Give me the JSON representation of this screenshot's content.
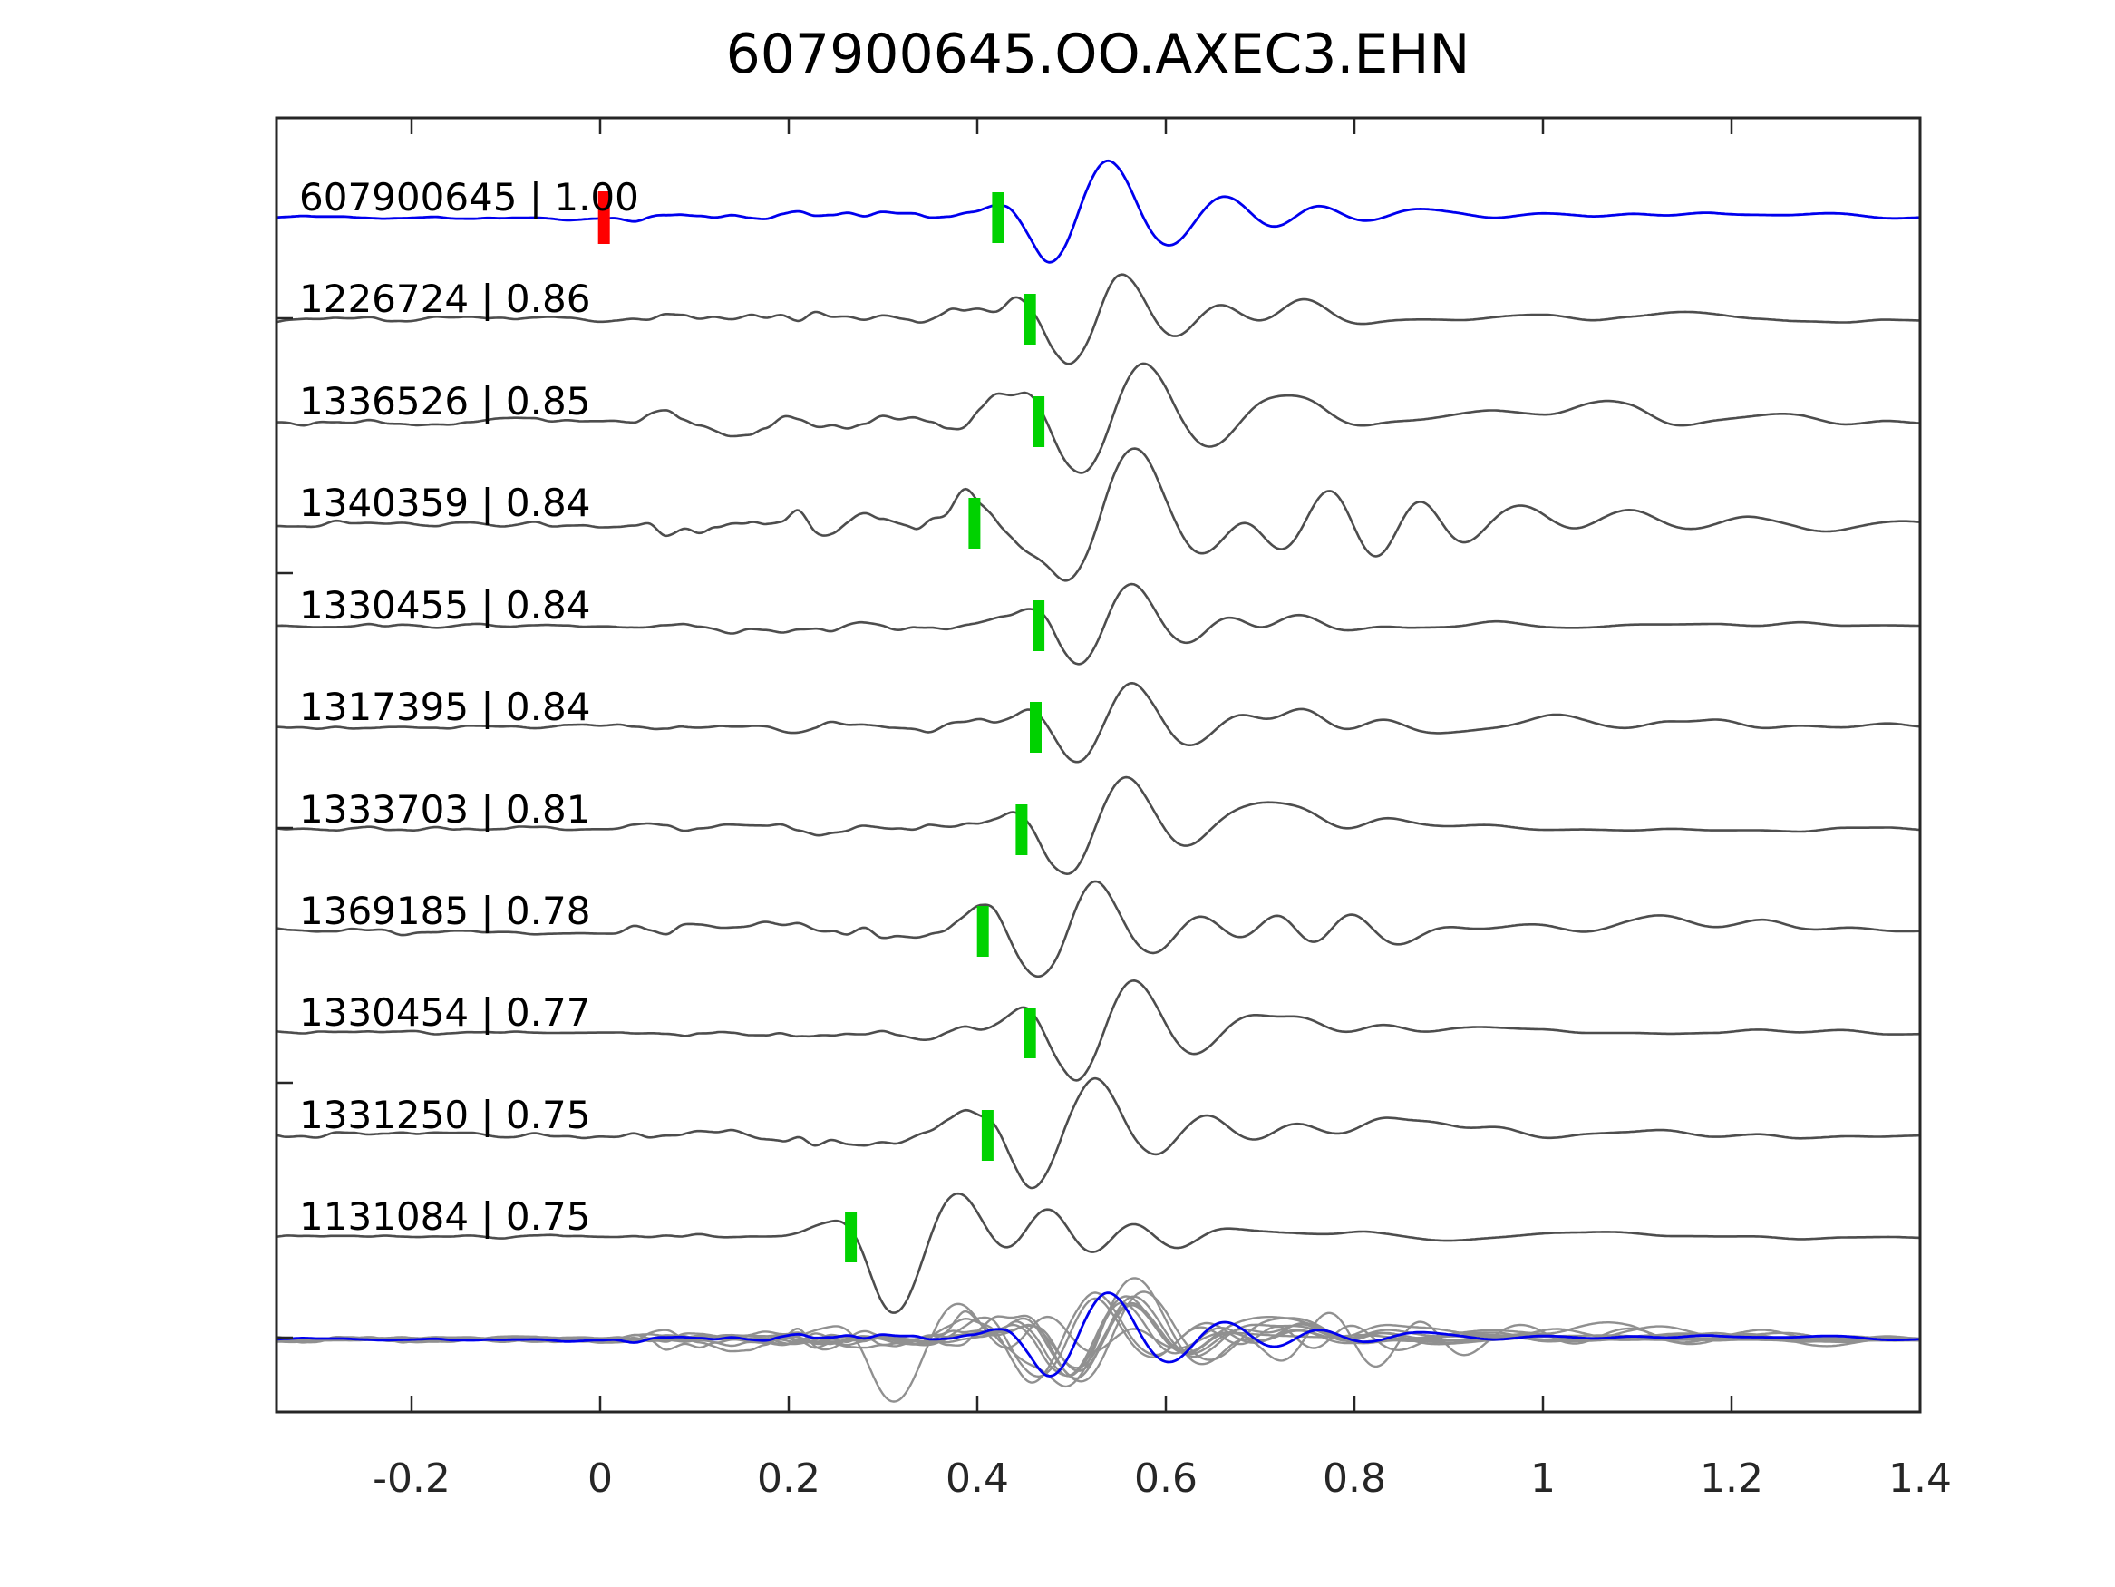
{
  "title": "607900645.OO.AXEC3.EHN",
  "colors": {
    "template_trace": "#0000ee",
    "trace": "#4d4d4d",
    "overlay_trace": "#909090",
    "pick_marker": "#00d200",
    "template_marker": "#ff0000",
    "axis": "#262626",
    "label_text": "#000000"
  },
  "axis": {
    "xticks": [
      -0.2,
      0,
      0.2,
      0.4,
      0.6,
      0.8,
      1.0,
      1.2,
      1.4
    ],
    "xtick_labels": [
      "-0.2",
      "0",
      "0.2",
      "0.4",
      "0.6",
      "0.8",
      "1",
      "1.2",
      "1.4"
    ],
    "xlim": [
      -0.343,
      1.4
    ]
  },
  "chart_data": {
    "type": "line",
    "title": "607900645.OO.AXEC3.EHN",
    "xlabel": "",
    "ylabel": "",
    "xlim": [
      -0.343,
      1.4
    ],
    "xticks": [
      -0.2,
      0,
      0.2,
      0.4,
      0.6,
      0.8,
      1.0,
      1.2,
      1.4
    ],
    "grid": false,
    "legend": "none",
    "description": "Template-matching waveform correlation plot: template trace (blue) on top, 10 detected traces below sorted by correlation, green pick markers on each trace, red marker at time 0 on template, and an overlay of all traces at the bottom.",
    "traces": [
      {
        "id": "607900645",
        "correlation": "1.00",
        "label": "607900645 | 1.00",
        "is_template": true,
        "pick_time": 0.422,
        "template_marker_time": 0.004,
        "noise": {
          "seed": 1,
          "pre": 2.5,
          "packet": 7,
          "tail": 4
        },
        "bumps": [
          [
            0.422,
            20,
            0.02
          ],
          [
            0.462,
            -8,
            0.02
          ],
          [
            0.488,
            -54,
            0.026
          ],
          [
            0.535,
            75,
            0.028
          ],
          [
            0.603,
            -38,
            0.028
          ],
          [
            0.66,
            30,
            0.028
          ],
          [
            0.715,
            -18,
            0.028
          ],
          [
            0.76,
            22,
            0.026
          ],
          [
            0.812,
            -10,
            0.028
          ],
          [
            0.86,
            10,
            0.03
          ],
          [
            1.0,
            6,
            0.035
          ],
          [
            1.15,
            5,
            0.035
          ],
          [
            1.3,
            4,
            0.035
          ]
        ]
      },
      {
        "id": "1226724",
        "correlation": "0.86",
        "label": "1226724 | 0.86",
        "is_template": false,
        "pick_time": 0.456,
        "template_marker_time": null,
        "noise": {
          "seed": 2,
          "pre": 4,
          "packet": 11,
          "tail": 4
        },
        "bumps": [
          [
            0.4,
            10,
            0.025
          ],
          [
            0.456,
            24,
            0.02
          ],
          [
            0.503,
            -60,
            0.026
          ],
          [
            0.55,
            62,
            0.027
          ],
          [
            0.61,
            -30,
            0.028
          ],
          [
            0.652,
            24,
            0.026
          ],
          [
            0.7,
            -12,
            0.026
          ],
          [
            0.742,
            25,
            0.024
          ],
          [
            0.8,
            -8,
            0.026
          ],
          [
            1.0,
            8,
            0.03
          ],
          [
            1.15,
            5,
            0.03
          ]
        ]
      },
      {
        "id": "1336526",
        "correlation": "0.85",
        "label": "1336526 | 0.85",
        "is_template": false,
        "pick_time": 0.465,
        "template_marker_time": null,
        "noise": {
          "seed": 3,
          "pre": 4,
          "packet": 15,
          "tail": 6
        },
        "bumps": [
          [
            0.42,
            12,
            0.022
          ],
          [
            0.465,
            26,
            0.02
          ],
          [
            0.515,
            -65,
            0.026
          ],
          [
            0.575,
            70,
            0.028
          ],
          [
            0.645,
            -32,
            0.028
          ],
          [
            0.7,
            18,
            0.026
          ],
          [
            0.74,
            25,
            0.026
          ],
          [
            0.8,
            -10,
            0.028
          ],
          [
            0.95,
            12,
            0.035
          ],
          [
            1.07,
            18,
            0.035
          ],
          [
            1.15,
            -6,
            0.03
          ],
          [
            1.25,
            8,
            0.032
          ]
        ]
      },
      {
        "id": "1340359",
        "correlation": "0.84",
        "label": "1340359 | 0.84",
        "is_template": false,
        "pick_time": 0.397,
        "template_marker_time": null,
        "noise": {
          "seed": 4,
          "pre": 4,
          "packet": 17,
          "tail": 7
        },
        "bumps": [
          [
            0.397,
            28,
            0.02
          ],
          [
            0.445,
            -14,
            0.022
          ],
          [
            0.5,
            -72,
            0.027
          ],
          [
            0.565,
            86,
            0.03
          ],
          [
            0.638,
            -45,
            0.028
          ],
          [
            0.68,
            20,
            0.022
          ],
          [
            0.725,
            -38,
            0.024
          ],
          [
            0.775,
            48,
            0.024
          ],
          [
            0.822,
            -46,
            0.024
          ],
          [
            0.868,
            42,
            0.024
          ],
          [
            0.912,
            -28,
            0.024
          ],
          [
            0.97,
            22,
            0.028
          ],
          [
            1.03,
            -10,
            0.026
          ],
          [
            1.09,
            14,
            0.028
          ],
          [
            1.16,
            -8,
            0.028
          ],
          [
            1.22,
            12,
            0.028
          ],
          [
            1.3,
            -6,
            0.028
          ],
          [
            1.37,
            8,
            0.028
          ]
        ]
      },
      {
        "id": "1330455",
        "correlation": "0.84",
        "label": "1330455 | 0.84",
        "is_template": false,
        "pick_time": 0.465,
        "template_marker_time": null,
        "noise": {
          "seed": 5,
          "pre": 3,
          "packet": 7,
          "tail": 4
        },
        "bumps": [
          [
            0.42,
            10,
            0.022
          ],
          [
            0.465,
            24,
            0.02
          ],
          [
            0.513,
            -55,
            0.026
          ],
          [
            0.56,
            60,
            0.027
          ],
          [
            0.62,
            -28,
            0.028
          ],
          [
            0.662,
            20,
            0.024
          ],
          [
            0.7,
            -8,
            0.02
          ],
          [
            0.74,
            16,
            0.024
          ],
          [
            0.8,
            -6,
            0.026
          ],
          [
            0.95,
            6,
            0.03
          ]
        ]
      },
      {
        "id": "1317395",
        "correlation": "0.84",
        "label": "1317395 | 0.84",
        "is_template": false,
        "pick_time": 0.462,
        "template_marker_time": null,
        "noise": {
          "seed": 6,
          "pre": 3,
          "packet": 7,
          "tail": 4
        },
        "bumps": [
          [
            0.41,
            8,
            0.022
          ],
          [
            0.462,
            22,
            0.02
          ],
          [
            0.51,
            -52,
            0.026
          ],
          [
            0.56,
            58,
            0.027
          ],
          [
            0.625,
            -26,
            0.028
          ],
          [
            0.675,
            18,
            0.026
          ],
          [
            0.71,
            -6,
            0.02
          ],
          [
            0.745,
            22,
            0.024
          ],
          [
            0.79,
            -8,
            0.024
          ],
          [
            0.83,
            12,
            0.024
          ],
          [
            0.9,
            -5,
            0.026
          ],
          [
            1.02,
            14,
            0.03
          ],
          [
            1.13,
            8,
            0.025
          ],
          [
            1.19,
            7,
            0.025
          ]
        ]
      },
      {
        "id": "1333703",
        "correlation": "0.81",
        "label": "1333703 | 0.81",
        "is_template": false,
        "pick_time": 0.447,
        "template_marker_time": null,
        "noise": {
          "seed": 7,
          "pre": 3,
          "packet": 8,
          "tail": 4
        },
        "bumps": [
          [
            0.4,
            10,
            0.022
          ],
          [
            0.447,
            24,
            0.02
          ],
          [
            0.498,
            -58,
            0.026
          ],
          [
            0.555,
            64,
            0.028
          ],
          [
            0.62,
            -26,
            0.028
          ],
          [
            0.668,
            18,
            0.026
          ],
          [
            0.705,
            16,
            0.022
          ],
          [
            0.745,
            17,
            0.024
          ],
          [
            0.79,
            -8,
            0.024
          ],
          [
            0.83,
            12,
            0.024
          ],
          [
            0.92,
            5,
            0.03
          ]
        ]
      },
      {
        "id": "1369185",
        "correlation": "0.78",
        "label": "1369185 | 0.78",
        "is_template": false,
        "pick_time": 0.406,
        "template_marker_time": null,
        "noise": {
          "seed": 8,
          "pre": 4,
          "packet": 13,
          "tail": 5
        },
        "bumps": [
          [
            0.406,
            26,
            0.022
          ],
          [
            0.452,
            -12,
            0.022
          ],
          [
            0.474,
            -48,
            0.024
          ],
          [
            0.525,
            62,
            0.027
          ],
          [
            0.585,
            -35,
            0.028
          ],
          [
            0.63,
            25,
            0.026
          ],
          [
            0.685,
            -12,
            0.026
          ],
          [
            0.72,
            28,
            0.024
          ],
          [
            0.755,
            -28,
            0.022
          ],
          [
            0.795,
            28,
            0.024
          ],
          [
            0.838,
            -16,
            0.024
          ],
          [
            0.89,
            8,
            0.026
          ],
          [
            0.98,
            6,
            0.03
          ],
          [
            1.12,
            14,
            0.032
          ],
          [
            1.24,
            12,
            0.032
          ],
          [
            1.33,
            6,
            0.03
          ]
        ]
      },
      {
        "id": "1330454",
        "correlation": "0.77",
        "label": "1330454 | 0.77",
        "is_template": false,
        "pick_time": 0.456,
        "template_marker_time": null,
        "noise": {
          "seed": 9,
          "pre": 3,
          "packet": 8,
          "tail": 4
        },
        "bumps": [
          [
            0.41,
            10,
            0.022
          ],
          [
            0.456,
            26,
            0.02
          ],
          [
            0.508,
            -60,
            0.026
          ],
          [
            0.563,
            66,
            0.028
          ],
          [
            0.628,
            -30,
            0.028
          ],
          [
            0.683,
            18,
            0.026
          ],
          [
            0.745,
            16,
            0.026
          ],
          [
            0.79,
            -6,
            0.024
          ],
          [
            0.83,
            10,
            0.026
          ],
          [
            0.93,
            4,
            0.03
          ]
        ]
      },
      {
        "id": "1331250",
        "correlation": "0.75",
        "label": "1331250 | 0.75",
        "is_template": false,
        "pick_time": 0.411,
        "template_marker_time": null,
        "noise": {
          "seed": 10,
          "pre": 4,
          "packet": 11,
          "tail": 5
        },
        "bumps": [
          [
            0.37,
            8,
            0.022
          ],
          [
            0.411,
            26,
            0.02
          ],
          [
            0.463,
            -62,
            0.026
          ],
          [
            0.523,
            70,
            0.028
          ],
          [
            0.585,
            -32,
            0.028
          ],
          [
            0.64,
            24,
            0.027
          ],
          [
            0.7,
            -12,
            0.027
          ],
          [
            0.733,
            18,
            0.025
          ],
          [
            0.79,
            -10,
            0.026
          ],
          [
            0.822,
            20,
            0.026
          ],
          [
            0.88,
            14,
            0.028
          ],
          [
            0.95,
            8,
            0.03
          ],
          [
            1.1,
            6,
            0.032
          ]
        ]
      },
      {
        "id": "1131084",
        "correlation": "0.75",
        "label": "1131084 | 0.75",
        "is_template": false,
        "pick_time": 0.266,
        "template_marker_time": null,
        "noise": {
          "seed": 11,
          "pre": 2,
          "packet": 3,
          "tail": 4
        },
        "bumps": [
          [
            0.225,
            8,
            0.022
          ],
          [
            0.266,
            28,
            0.02
          ],
          [
            0.313,
            -92,
            0.028
          ],
          [
            0.378,
            58,
            0.03
          ],
          [
            0.43,
            -34,
            0.026
          ],
          [
            0.475,
            44,
            0.026
          ],
          [
            0.522,
            -30,
            0.026
          ],
          [
            0.565,
            27,
            0.026
          ],
          [
            0.61,
            -18,
            0.026
          ],
          [
            0.648,
            14,
            0.024
          ],
          [
            0.72,
            8,
            0.03
          ],
          [
            0.8,
            6,
            0.032
          ],
          [
            0.9,
            -5,
            0.03
          ],
          [
            1.05,
            5,
            0.032
          ]
        ]
      }
    ],
    "overlay": {
      "includes": "all 11 traces superimposed, template in blue on top",
      "amplitude_scale": 0.82
    }
  }
}
